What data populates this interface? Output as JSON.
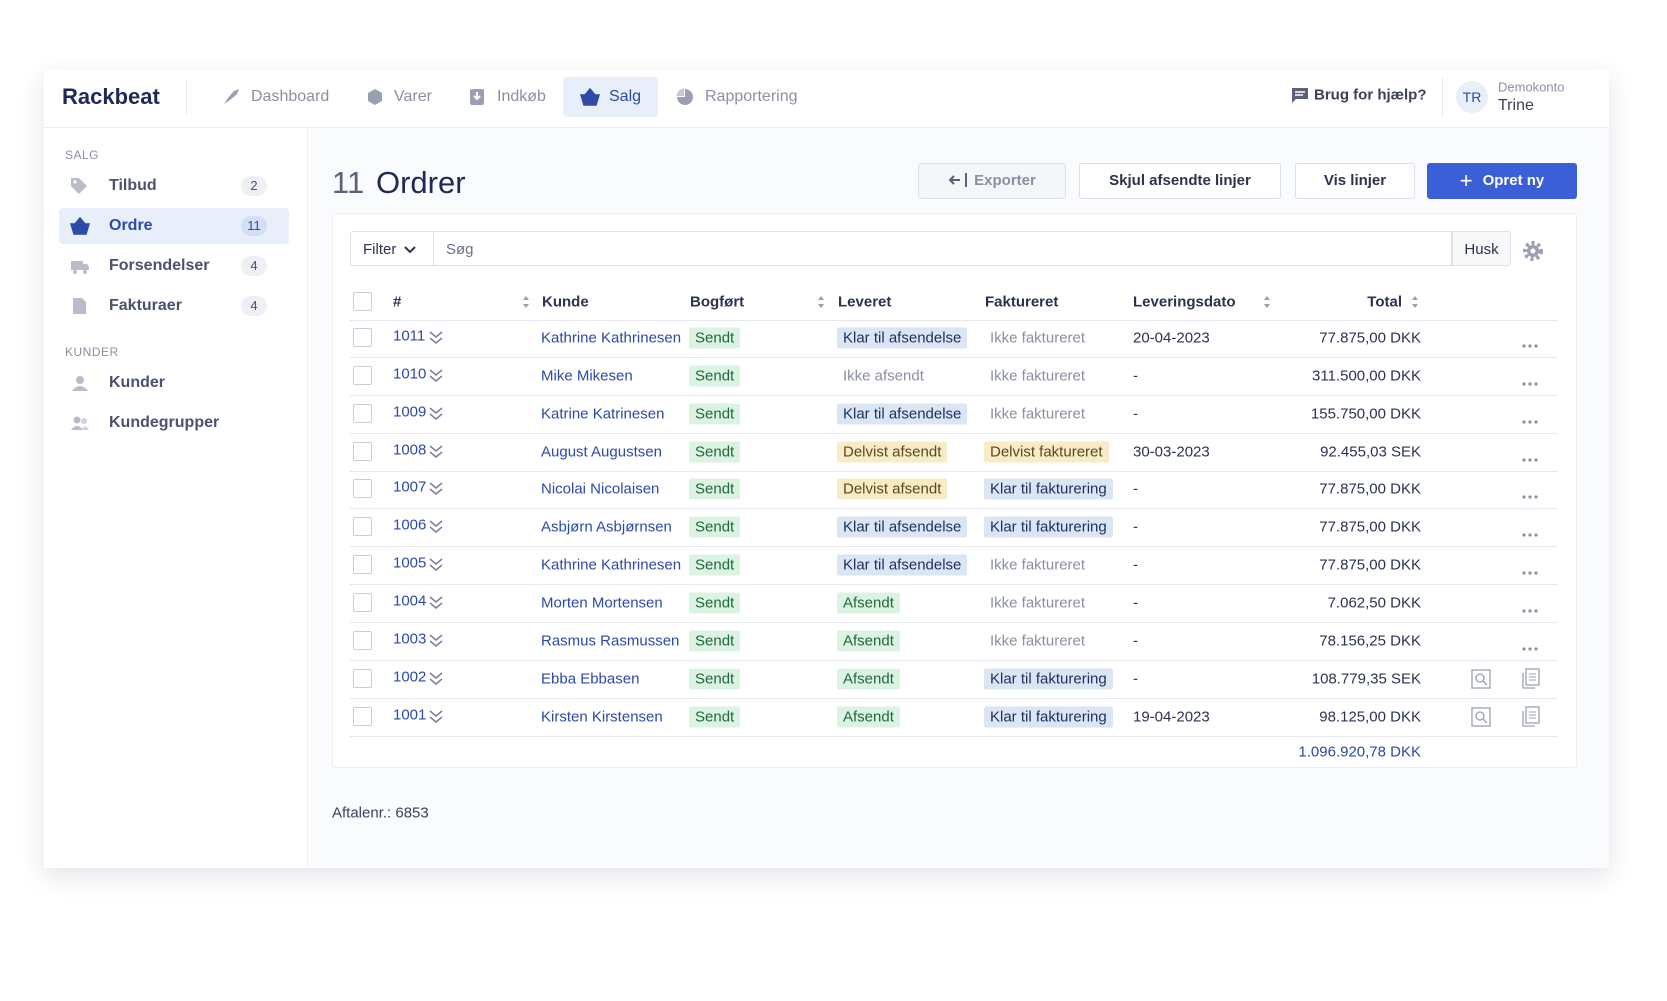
{
  "nav": {
    "brand": "Rackbeat",
    "items": [
      "Dashboard",
      "Varer",
      "Indkøb",
      "Salg",
      "Rapportering"
    ],
    "help": "Brug for hjælp?",
    "user": {
      "initials": "TR",
      "account": "Demokonto",
      "name": "Trine"
    }
  },
  "sidebar": {
    "sections": [
      {
        "title": "SALG",
        "items": [
          {
            "label": "Tilbud",
            "count": 2
          },
          {
            "label": "Ordre",
            "count": 11
          },
          {
            "label": "Forsendelser",
            "count": 4
          },
          {
            "label": "Fakturaer",
            "count": 4
          }
        ]
      },
      {
        "title": "KUNDER",
        "items": [
          {
            "label": "Kunder"
          },
          {
            "label": "Kundegrupper"
          }
        ]
      }
    ]
  },
  "page": {
    "count": 11,
    "title": "Ordrer",
    "buttons": [
      "Exporter",
      "Skjul afsendte linjer",
      "Vis linjer",
      "Opret ny"
    ]
  },
  "search": {
    "filter": "Filter",
    "placeholder": "Søg",
    "remember": "Husk"
  },
  "table": {
    "columns": [
      "#",
      "Kunde",
      "Bogført",
      "Leveret",
      "Faktureret",
      "Leveringsdato",
      "Total"
    ],
    "rows": [
      {
        "number": 1011,
        "customer": "Kathrine Kathrinesen",
        "booked": {
          "text": "Sendt",
          "color": "#dcf2e3",
          "text_color": "#1e6b3a"
        },
        "delivered": {
          "text": "Klar til afsendelse",
          "color": "#dbe6f5",
          "text_color": "#1f3060"
        },
        "invoiced": {
          "text": "Ikke faktureret"
        },
        "date": "20-04-2023",
        "total": "77.875,00 DKK"
      },
      {
        "number": 1010,
        "customer": "Mike Mikesen",
        "booked": {
          "text": "Sendt",
          "color": "#dcf2e3",
          "text_color": "#1e6b3a"
        },
        "delivered": {
          "text": "Ikke afsendt"
        },
        "invoiced": {
          "text": "Ikke faktureret"
        },
        "date": "-",
        "total": "311.500,00 DKK"
      },
      {
        "number": 1009,
        "customer": "Katrine Katrinesen",
        "booked": {
          "text": "Sendt",
          "color": "#dcf2e3",
          "text_color": "#1e6b3a"
        },
        "delivered": {
          "text": "Klar til afsendelse",
          "color": "#dbe6f5",
          "text_color": "#1f3060"
        },
        "invoiced": {
          "text": "Ikke faktureret"
        },
        "date": "-",
        "total": "155.750,00 DKK"
      },
      {
        "number": 1008,
        "customer": "August Augustsen",
        "booked": {
          "text": "Sendt",
          "color": "#dcf2e3",
          "text_color": "#1e6b3a"
        },
        "delivered": {
          "text": "Delvist afsendt",
          "color": "#f7ebc8",
          "text_color": "#5b4a17"
        },
        "invoiced": {
          "text": "Delvist faktureret",
          "color": "#f7ebc8",
          "text_color": "#5b4a17"
        },
        "date": "30-03-2023",
        "total": "92.455,03 SEK"
      },
      {
        "number": 1007,
        "customer": "Nicolai Nicolaisen",
        "booked": {
          "text": "Sendt",
          "color": "#dcf2e3",
          "text_color": "#1e6b3a"
        },
        "delivered": {
          "text": "Delvist afsendt",
          "color": "#f7ebc8",
          "text_color": "#5b4a17"
        },
        "invoiced": {
          "text": "Klar til fakturering",
          "color": "#dbe6f5",
          "text_color": "#1f3060"
        },
        "date": "-",
        "total": "77.875,00 DKK"
      },
      {
        "number": 1006,
        "customer": "Asbjørn Asbjørnsen",
        "booked": {
          "text": "Sendt",
          "color": "#dcf2e3",
          "text_color": "#1e6b3a"
        },
        "delivered": {
          "text": "Klar til afsendelse",
          "color": "#dbe6f5",
          "text_color": "#1f3060"
        },
        "invoiced": {
          "text": "Klar til fakturering",
          "color": "#dbe6f5",
          "text_color": "#1f3060"
        },
        "date": "-",
        "total": "77.875,00 DKK"
      },
      {
        "number": 1005,
        "customer": "Kathrine Kathrinesen",
        "booked": {
          "text": "Sendt",
          "color": "#dcf2e3",
          "text_color": "#1e6b3a"
        },
        "delivered": {
          "text": "Klar til afsendelse",
          "color": "#dbe6f5",
          "text_color": "#1f3060"
        },
        "invoiced": {
          "text": "Ikke faktureret"
        },
        "date": "-",
        "total": "77.875,00 DKK"
      },
      {
        "number": 1004,
        "customer": "Morten Mortensen",
        "booked": {
          "text": "Sendt",
          "color": "#dcf2e3",
          "text_color": "#1e6b3a"
        },
        "delivered": {
          "text": "Afsendt",
          "color": "#dcf2e3",
          "text_color": "#1e6b3a"
        },
        "invoiced": {
          "text": "Ikke faktureret"
        },
        "date": "-",
        "total": "7.062,50 DKK"
      },
      {
        "number": 1003,
        "customer": "Rasmus Rasmussen",
        "booked": {
          "text": "Sendt",
          "color": "#dcf2e3",
          "text_color": "#1e6b3a"
        },
        "delivered": {
          "text": "Afsendt",
          "color": "#dcf2e3",
          "text_color": "#1e6b3a"
        },
        "invoiced": {
          "text": "Ikke faktureret"
        },
        "date": "-",
        "total": "78.156,25 DKK"
      },
      {
        "number": 1002,
        "customer": "Ebba Ebbasen",
        "booked": {
          "text": "Sendt",
          "color": "#dcf2e3",
          "text_color": "#1e6b3a"
        },
        "delivered": {
          "text": "Afsendt",
          "color": "#dcf2e3",
          "text_color": "#1e6b3a"
        },
        "invoiced": {
          "text": "Klar til fakturering",
          "color": "#dbe6f5",
          "text_color": "#1f3060"
        },
        "date": "-",
        "total": "108.779,35 SEK"
      },
      {
        "number": 1001,
        "customer": "Kirsten Kirstensen",
        "booked": {
          "text": "Sendt",
          "color": "#dcf2e3",
          "text_color": "#1e6b3a"
        },
        "delivered": {
          "text": "Afsendt",
          "color": "#dcf2e3",
          "text_color": "#1e6b3a"
        },
        "invoiced": {
          "text": "Klar til fakturering",
          "color": "#dbe6f5",
          "text_color": "#1f3060"
        },
        "date": "19-04-2023",
        "total": "98.125,00 DKK"
      }
    ],
    "sum": "1.096.920,78 DKK"
  },
  "footer": "Aftalenr.: 6853"
}
